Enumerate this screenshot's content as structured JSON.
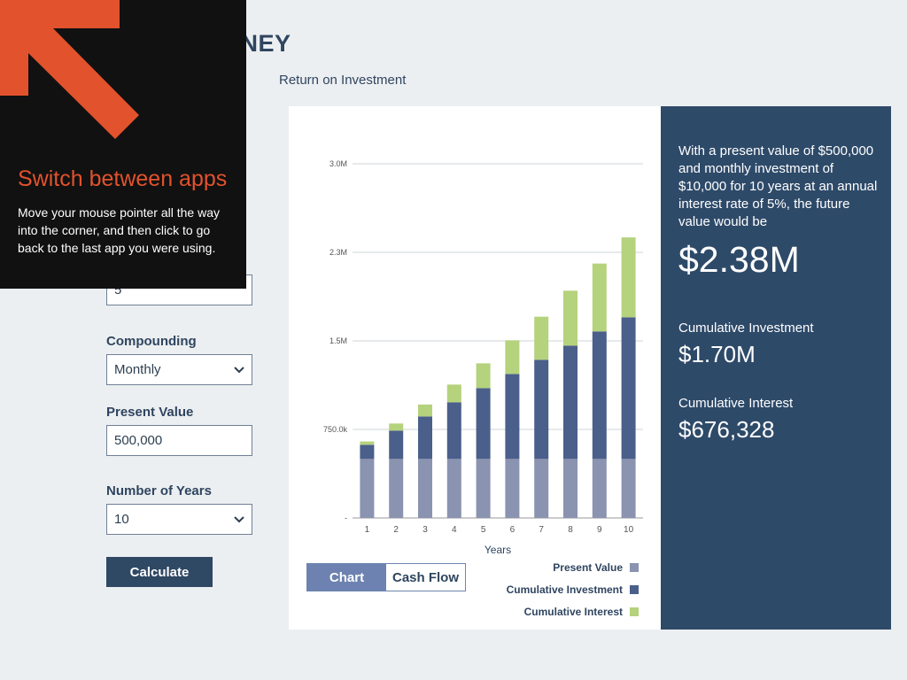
{
  "app": {
    "title_fragment": "ONEY",
    "subtitle": "Return on Investment"
  },
  "form": {
    "rate_value": "5",
    "compounding_label": "Compounding",
    "compounding_value": "Monthly",
    "present_value_label": "Present Value",
    "present_value_value": "500,000",
    "years_label": "Number of Years",
    "years_value": "10",
    "calculate_label": "Calculate"
  },
  "summary": {
    "description": "With a present value of $500,000 and monthly investment of $10,000 for 10 years at an annual interest rate of 5%, the future value would be",
    "future_value": "$2.38M",
    "cum_investment_label": "Cumulative Investment",
    "cum_investment_value": "$1.70M",
    "cum_interest_label": "Cumulative Interest",
    "cum_interest_value": "$676,328"
  },
  "toggle": {
    "chart_label": "Chart",
    "cashflow_label": "Cash Flow"
  },
  "overlay": {
    "title": "Switch between apps",
    "text": "Move your mouse pointer all the way into the corner, and then click to go back to the last app you were using."
  },
  "colors": {
    "present_value": "#8a93b0",
    "cumulative_investment": "#4a5f8a",
    "cumulative_interest": "#b5d27c",
    "accent": "#e2522c",
    "panel": "#2e4a69"
  },
  "chart_data": {
    "type": "bar",
    "stacked": true,
    "categories": [
      "1",
      "2",
      "3",
      "4",
      "5",
      "6",
      "7",
      "8",
      "9",
      "10"
    ],
    "xlabel": "Years",
    "ylabel": "",
    "ylim": [
      0,
      3000000
    ],
    "yticks": [
      0,
      750000,
      1500000,
      2250000,
      3000000
    ],
    "ytick_labels": [
      "-",
      "750.0k",
      "1.5M",
      "2.3M",
      "3.0M"
    ],
    "grid": true,
    "legend_position": "bottom-right",
    "series": [
      {
        "name": "Present Value",
        "values": [
          500000,
          500000,
          500000,
          500000,
          500000,
          500000,
          500000,
          500000,
          500000,
          500000
        ]
      },
      {
        "name": "Cumulative Investment",
        "values": [
          120000,
          240000,
          360000,
          480000,
          600000,
          720000,
          840000,
          960000,
          1080000,
          1200000
        ]
      },
      {
        "name": "Cumulative Interest",
        "values": [
          28000,
          60000,
          101000,
          150000,
          210000,
          285000,
          365000,
          465000,
          575000,
          676328
        ]
      }
    ]
  }
}
